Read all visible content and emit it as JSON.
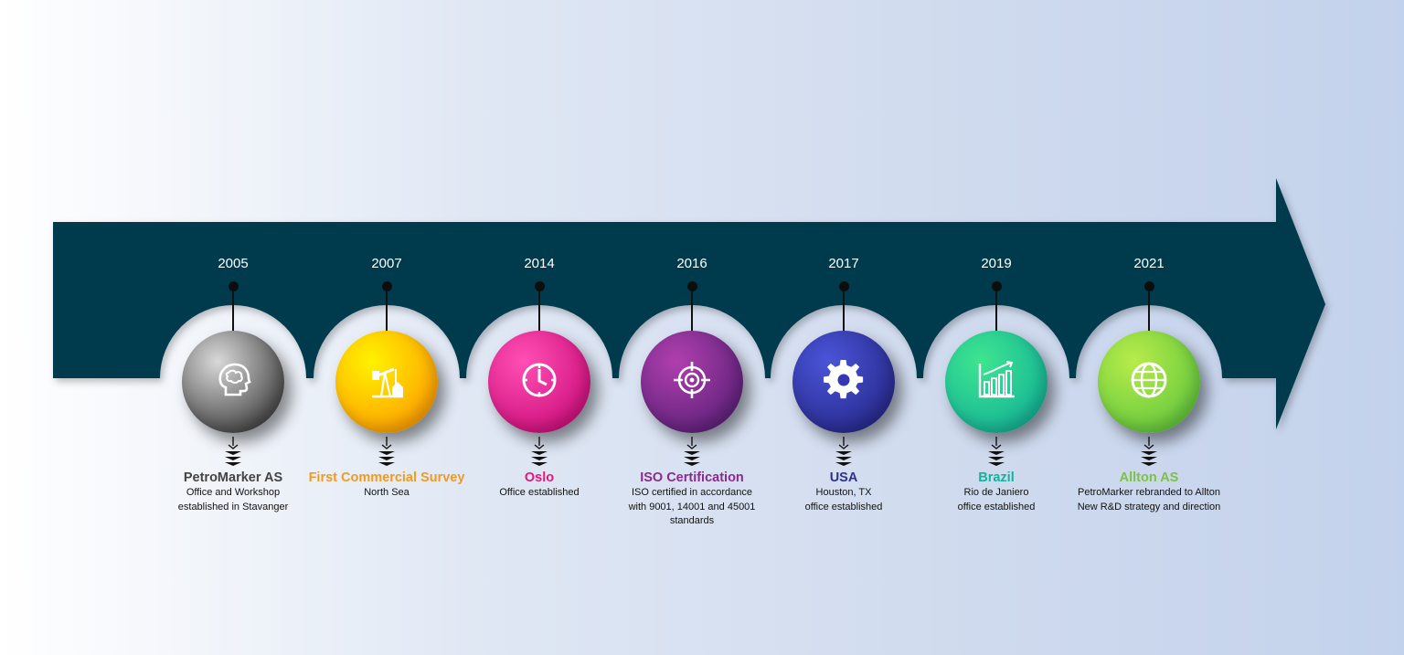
{
  "timeline": {
    "milestones": [
      {
        "year": "2005",
        "title": "PetroMarker AS",
        "title_color": "#444444",
        "icon": "brain-head-icon",
        "desc_lines": [
          "Office and Workshop",
          "established in Stavanger"
        ]
      },
      {
        "year": "2007",
        "title": "First Commercial Survey",
        "title_color": "#f29a1f",
        "icon": "oil-pump-icon",
        "desc_lines": [
          "North Sea"
        ]
      },
      {
        "year": "2014",
        "title": "Oslo",
        "title_color": "#e6157d",
        "icon": "clock-icon",
        "desc_lines": [
          "Office established"
        ]
      },
      {
        "year": "2016",
        "title": "ISO Certification",
        "title_color": "#8a2a8e",
        "icon": "target-icon",
        "desc_lines": [
          "ISO certified in accordance",
          "with 9001, 14001 and 45001",
          "standards"
        ]
      },
      {
        "year": "2017",
        "title": "USA",
        "title_color": "#2f2f8f",
        "icon": "gear-icon",
        "desc_lines": [
          "Houston, TX",
          "office established"
        ]
      },
      {
        "year": "2019",
        "title": "Brazil",
        "title_color": "#12b39a",
        "icon": "bar-chart-icon",
        "desc_lines": [
          "Rio de Janiero",
          "office established"
        ]
      },
      {
        "year": "2021",
        "title": "Allton AS",
        "title_color": "#7dc242",
        "icon": "globe-icon",
        "desc_lines": [
          "PetroMarker rebranded to Allton",
          "New R&D strategy and direction"
        ]
      }
    ],
    "colors": {
      "arrow": "#043a4e",
      "node_gradients": [
        [
          "#d9d9d9",
          "#1e1e1e"
        ],
        [
          "#fff200",
          "#ff8a00"
        ],
        [
          "#ff4fb4",
          "#c2006f"
        ],
        [
          "#b03fae",
          "#4a1a6e"
        ],
        [
          "#4a55d8",
          "#1f1f7a"
        ],
        [
          "#3ee58f",
          "#0aa89a"
        ],
        [
          "#b8ec4a",
          "#4fbf3a"
        ]
      ]
    }
  }
}
